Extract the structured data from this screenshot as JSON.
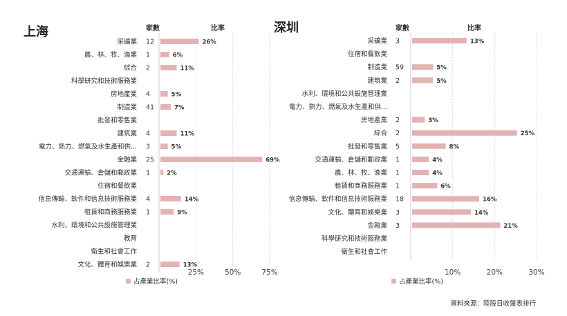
{
  "source": "資料來源：陸股日收盤表排行",
  "colors": {
    "bar": "#e3b3b3",
    "axis": "#d0d0d0"
  },
  "chart_data": [
    {
      "type": "bar",
      "title": "上海",
      "count_header": "家數",
      "ratio_header": "比率",
      "legend": "占產業比率(%)",
      "x_ticks": [
        "25%",
        "50%",
        "75%"
      ],
      "xlim": [
        0,
        75
      ],
      "rows": [
        {
          "category": "采礦業",
          "count": "12",
          "ratio": 26,
          "label": "26%"
        },
        {
          "category": "農、林、牧、漁業",
          "count": "1",
          "ratio": 6,
          "label": "6%"
        },
        {
          "category": "綜合",
          "count": "2",
          "ratio": 11,
          "label": "11%"
        },
        {
          "category": "科學研究和技術服務業",
          "count": "",
          "ratio": null,
          "label": ""
        },
        {
          "category": "房地產業",
          "count": "4",
          "ratio": 5,
          "label": "5%"
        },
        {
          "category": "制造業",
          "count": "41",
          "ratio": 7,
          "label": "7%"
        },
        {
          "category": "批發和零售業",
          "count": "",
          "ratio": null,
          "label": ""
        },
        {
          "category": "建筑業",
          "count": "4",
          "ratio": 11,
          "label": "11%"
        },
        {
          "category": "電力、熱力、燃氣及水生產和供...",
          "count": "3",
          "ratio": 5,
          "label": "5%"
        },
        {
          "category": "金融業",
          "count": "25",
          "ratio": 69,
          "label": "69%"
        },
        {
          "category": "交通運輸、倉儲和郵政業",
          "count": "1",
          "ratio": 2,
          "label": "2%"
        },
        {
          "category": "住宿和餐飲業",
          "count": "",
          "ratio": null,
          "label": ""
        },
        {
          "category": "信息傳輸、軟件和信息技術服務業",
          "count": "4",
          "ratio": 14,
          "label": "14%"
        },
        {
          "category": "租賃和商務服務業",
          "count": "1",
          "ratio": 9,
          "label": "9%"
        },
        {
          "category": "水利、環境和公共設施管理業",
          "count": "",
          "ratio": null,
          "label": ""
        },
        {
          "category": "教育",
          "count": "",
          "ratio": null,
          "label": ""
        },
        {
          "category": "衛生和社會工作",
          "count": "",
          "ratio": null,
          "label": ""
        },
        {
          "category": "文化、體育和娛樂業",
          "count": "2",
          "ratio": 13,
          "label": "13%"
        }
      ]
    },
    {
      "type": "bar",
      "title": "深圳",
      "count_header": "家數",
      "ratio_header": "比率",
      "legend": "占產業比率(%)",
      "x_ticks": [
        "10%",
        "20%",
        "30%"
      ],
      "xlim": [
        0,
        30
      ],
      "rows": [
        {
          "category": "采礦業",
          "count": "3",
          "ratio": 13,
          "label": "13%"
        },
        {
          "category": "住宿和餐飲業",
          "count": "",
          "ratio": null,
          "label": ""
        },
        {
          "category": "制造業",
          "count": "59",
          "ratio": 5,
          "label": "5%"
        },
        {
          "category": "建筑業",
          "count": "2",
          "ratio": 5,
          "label": "5%"
        },
        {
          "category": "水利、環境和公共設施管理業",
          "count": "",
          "ratio": null,
          "label": ""
        },
        {
          "category": "電力、熱力、燃氣及水生產和供...",
          "count": "",
          "ratio": null,
          "label": ""
        },
        {
          "category": "房地產業",
          "count": "2",
          "ratio": 3,
          "label": "3%"
        },
        {
          "category": "綜合",
          "count": "2",
          "ratio": 25,
          "label": "25%"
        },
        {
          "category": "批發和零售業",
          "count": "5",
          "ratio": 8,
          "label": "8%"
        },
        {
          "category": "交通運輸、倉儲和郵政業",
          "count": "1",
          "ratio": 4,
          "label": "4%"
        },
        {
          "category": "農、林、牧、漁業",
          "count": "1",
          "ratio": 4,
          "label": "4%"
        },
        {
          "category": "租賃和商務服務業",
          "count": "1",
          "ratio": 6,
          "label": "6%"
        },
        {
          "category": "信息傳輸、軟件和信息技術服務業",
          "count": "18",
          "ratio": 16,
          "label": "16%"
        },
        {
          "category": "文化、體育和娛樂業",
          "count": "3",
          "ratio": 14,
          "label": "14%"
        },
        {
          "category": "金融業",
          "count": "3",
          "ratio": 21,
          "label": "21%"
        },
        {
          "category": "科學研究和技術服務業",
          "count": "",
          "ratio": null,
          "label": ""
        },
        {
          "category": "衛生和社會工作",
          "count": "",
          "ratio": null,
          "label": ""
        }
      ]
    }
  ]
}
